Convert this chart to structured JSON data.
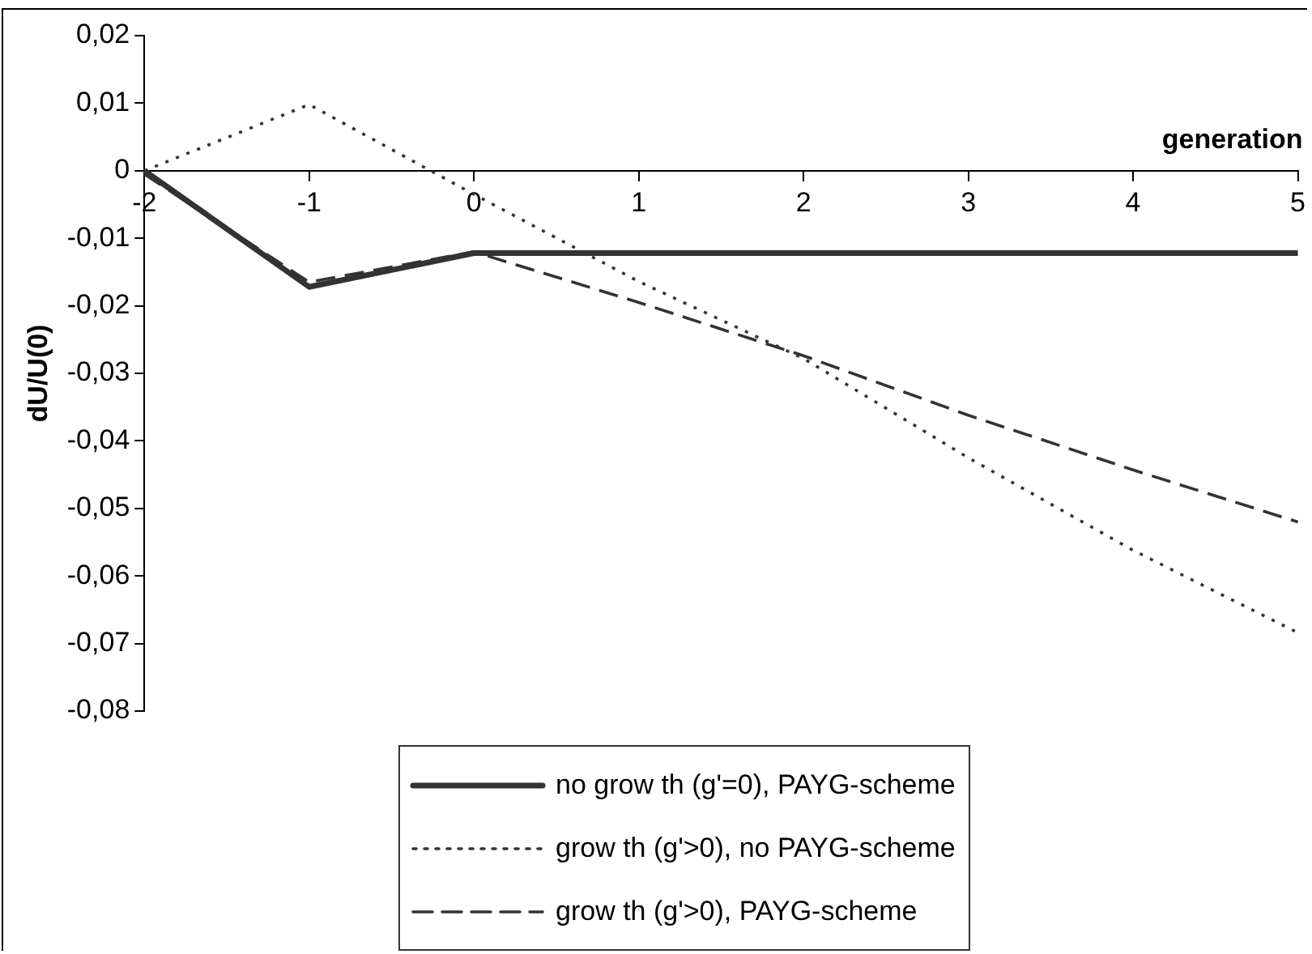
{
  "chart_data": {
    "type": "line",
    "xlabel": "generation",
    "ylabel": "dU/U(0)",
    "categories": [
      "-2",
      "-1",
      "0",
      "1",
      "2",
      "3",
      "4",
      "5"
    ],
    "series": [
      {
        "name": "no grow th (g'=0), PAYG-scheme",
        "color": "#333333",
        "line_style": "solid",
        "values": [
          0,
          -0.0172,
          -0.0122,
          -0.0122,
          -0.0122,
          -0.0122,
          -0.0122,
          -0.0122
        ]
      },
      {
        "name": "grow th (g'>0), no PAYG-scheme",
        "color": "#333333",
        "line_style": "dotted",
        "values": [
          0,
          0.0098,
          -0.0035,
          -0.0164,
          -0.0278,
          -0.0425,
          -0.0562,
          -0.0684
        ]
      },
      {
        "name": "grow th (g'>0), PAYG-scheme",
        "color": "#333333",
        "line_style": "dashed",
        "values": [
          -0.0005,
          -0.0165,
          -0.012,
          -0.0195,
          -0.0274,
          -0.0362,
          -0.0443,
          -0.052
        ]
      }
    ],
    "ylim": [
      -0.08,
      0.02
    ],
    "yticks": [
      {
        "value": 0.02,
        "label": "0,02"
      },
      {
        "value": 0.01,
        "label": "0,01"
      },
      0,
      {
        "value": -0.01,
        "label": "-0,01"
      },
      {
        "value": -0.02,
        "label": "-0,02"
      },
      {
        "value": -0.03,
        "label": "-0,03"
      },
      {
        "value": -0.04,
        "label": "-0,04"
      },
      {
        "value": -0.05,
        "label": "-0,05"
      },
      {
        "value": -0.06,
        "label": "-0,06"
      },
      {
        "value": -0.07,
        "label": "-0,07"
      },
      {
        "value": -0.08,
        "label": "-0,08"
      }
    ],
    "legend": "bottom",
    "marker": "none"
  }
}
